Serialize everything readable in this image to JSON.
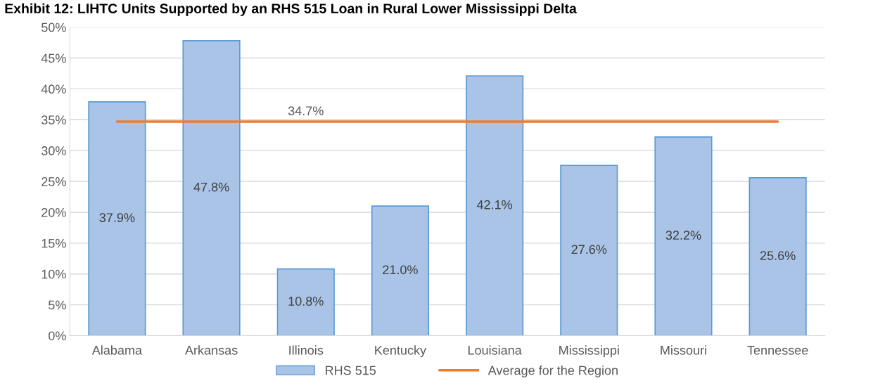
{
  "chart_data": {
    "type": "bar",
    "title": "Exhibit 12: LIHTC Units Supported by an RHS 515 Loan in Rural Lower Mississippi Delta",
    "categories": [
      "Alabama",
      "Arkansas",
      "Illinois",
      "Kentucky",
      "Louisiana",
      "Mississippi",
      "Missouri",
      "Tennessee"
    ],
    "series": [
      {
        "name": "RHS 515",
        "color": "#a9c4e7",
        "values": [
          37.9,
          47.8,
          10.8,
          21.0,
          42.1,
          27.6,
          32.2,
          25.6
        ],
        "value_labels": [
          "37.9%",
          "47.8%",
          "10.8%",
          "21.0%",
          "42.1%",
          "27.6%",
          "32.2%",
          "25.6%"
        ]
      },
      {
        "name": "Average for the Region",
        "type": "line",
        "color": "#ed7d31",
        "values": [
          34.7,
          34.7,
          34.7,
          34.7,
          34.7,
          34.7,
          34.7,
          34.7
        ],
        "value_labels": [
          null,
          null,
          "34.7%",
          null,
          null,
          null,
          null,
          null
        ]
      }
    ],
    "ylim": [
      0,
      50
    ],
    "yticks": [
      {
        "value": 0,
        "label": "0%"
      },
      {
        "value": 5,
        "label": "5%"
      },
      {
        "value": 10,
        "label": "10%"
      },
      {
        "value": 15,
        "label": "15%"
      },
      {
        "value": 20,
        "label": "20%"
      },
      {
        "value": 25,
        "label": "25%"
      },
      {
        "value": 30,
        "label": "30%"
      },
      {
        "value": 35,
        "label": "35%"
      },
      {
        "value": 40,
        "label": "40%"
      },
      {
        "value": 45,
        "label": "45%"
      },
      {
        "value": 50,
        "label": "50%"
      }
    ],
    "grid": "y",
    "legend": "bottom"
  }
}
